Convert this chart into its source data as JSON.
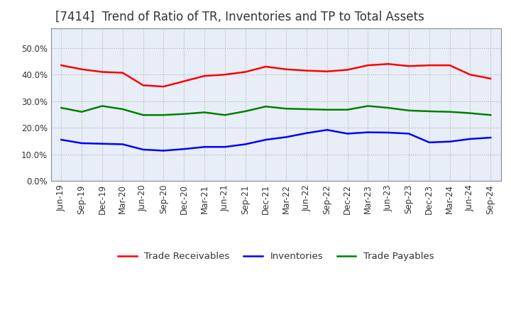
{
  "title": "[7414]  Trend of Ratio of TR, Inventories and TP to Total Assets",
  "x_labels": [
    "Jun-19",
    "Sep-19",
    "Dec-19",
    "Mar-20",
    "Jun-20",
    "Sep-20",
    "Dec-20",
    "Mar-21",
    "Jun-21",
    "Sep-21",
    "Dec-21",
    "Mar-22",
    "Jun-22",
    "Sep-22",
    "Dec-22",
    "Mar-23",
    "Jun-23",
    "Sep-23",
    "Dec-23",
    "Mar-24",
    "Jun-24",
    "Sep-24"
  ],
  "trade_receivables": [
    0.435,
    0.42,
    0.41,
    0.407,
    0.36,
    0.355,
    0.375,
    0.395,
    0.4,
    0.41,
    0.43,
    0.42,
    0.415,
    0.412,
    0.418,
    0.435,
    0.44,
    0.432,
    0.435,
    0.435,
    0.4,
    0.385
  ],
  "inventories": [
    0.155,
    0.142,
    0.14,
    0.138,
    0.118,
    0.114,
    0.12,
    0.128,
    0.128,
    0.138,
    0.155,
    0.165,
    0.18,
    0.192,
    0.178,
    0.183,
    0.182,
    0.178,
    0.145,
    0.148,
    0.158,
    0.163
  ],
  "trade_payables": [
    0.275,
    0.26,
    0.282,
    0.27,
    0.248,
    0.248,
    0.252,
    0.258,
    0.248,
    0.262,
    0.28,
    0.272,
    0.27,
    0.268,
    0.268,
    0.282,
    0.275,
    0.265,
    0.262,
    0.26,
    0.255,
    0.248
  ],
  "tr_color": "#FF0000",
  "inv_color": "#0000FF",
  "tp_color": "#008000",
  "ylim": [
    0.0,
    0.575
  ],
  "yticks": [
    0.0,
    0.1,
    0.2,
    0.3,
    0.4,
    0.5
  ],
  "grid_color": "#aaaaaa",
  "plot_bg_color": "#e8eef8",
  "fig_bg_color": "#ffffff",
  "legend_labels": [
    "Trade Receivables",
    "Inventories",
    "Trade Payables"
  ],
  "title_fontsize": 12,
  "tick_fontsize": 8.5,
  "legend_fontsize": 9.5,
  "title_color": "#333333"
}
